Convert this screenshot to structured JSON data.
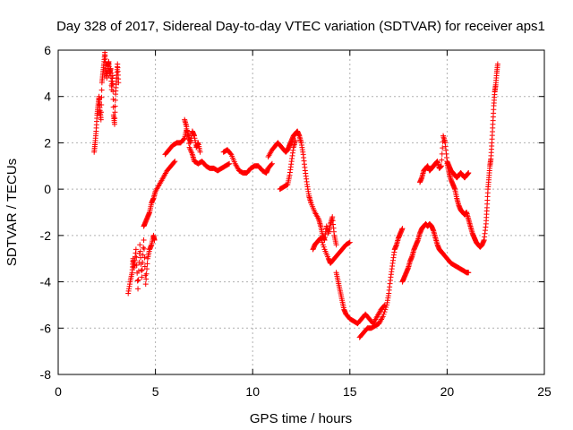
{
  "chart_data": {
    "type": "scatter",
    "title": "Day 328 of 2017, Sidereal Day-to-day VTEC variation (SDTVAR) for receiver aps1",
    "xlabel": "GPS time / hours",
    "ylabel": "SDTVAR / TECUs",
    "xlim": [
      0,
      25
    ],
    "ylim": [
      -8,
      6
    ],
    "xticks": [
      0,
      5,
      10,
      15,
      20,
      25
    ],
    "yticks": [
      -8,
      -6,
      -4,
      -2,
      0,
      2,
      4,
      6
    ],
    "xtick_labels": [
      "0",
      "5",
      "10",
      "15",
      "20",
      "25"
    ],
    "ytick_labels": [
      "-8",
      "-6",
      "-4",
      "-2",
      "0",
      "2",
      "4",
      "6"
    ],
    "grid": true,
    "marker": "+",
    "marker_color": "#ff0000",
    "series": [
      {
        "points": [
          [
            1.85,
            1.6
          ],
          [
            1.9,
            2.0
          ],
          [
            1.95,
            2.5
          ],
          [
            2.0,
            3.2
          ],
          [
            2.05,
            3.6
          ],
          [
            2.1,
            4.0
          ],
          [
            2.15,
            3.4
          ],
          [
            2.2,
            3.0
          ],
          [
            2.25,
            4.6
          ],
          [
            2.3,
            5.0
          ],
          [
            2.35,
            5.4
          ],
          [
            2.4,
            5.9
          ],
          [
            2.45,
            5.2
          ],
          [
            2.5,
            4.8
          ],
          [
            2.55,
            5.3
          ],
          [
            2.6,
            5.5
          ],
          [
            2.65,
            5.0
          ],
          [
            2.7,
            5.2
          ],
          [
            2.75,
            4.3
          ],
          [
            2.8,
            4.9
          ],
          [
            2.85,
            3.2
          ],
          [
            2.9,
            2.8
          ],
          [
            2.95,
            4.1
          ],
          [
            3.0,
            4.8
          ],
          [
            3.05,
            5.4
          ],
          [
            3.1,
            4.6
          ]
        ]
      },
      {
        "points": [
          [
            3.6,
            -4.5
          ],
          [
            3.7,
            -4.0
          ],
          [
            3.8,
            -3.6
          ],
          [
            3.85,
            -3.0
          ],
          [
            3.9,
            -3.4
          ],
          [
            4.0,
            -2.6
          ],
          [
            4.1,
            -4.3
          ],
          [
            4.2,
            -2.4
          ],
          [
            4.3,
            -3.8
          ],
          [
            4.4,
            -2.2
          ],
          [
            4.5,
            -4.1
          ],
          [
            4.6,
            -3.0
          ],
          [
            4.7,
            -2.6
          ],
          [
            4.8,
            -2.4
          ],
          [
            4.9,
            -2.0
          ],
          [
            4.95,
            -2.2
          ]
        ]
      },
      {
        "points": [
          [
            4.4,
            -1.6
          ],
          [
            4.5,
            -1.4
          ],
          [
            4.6,
            -1.2
          ],
          [
            4.7,
            -1.0
          ],
          [
            4.8,
            -0.6
          ],
          [
            4.9,
            -0.4
          ],
          [
            5.0,
            -0.1
          ],
          [
            5.2,
            0.2
          ],
          [
            5.4,
            0.5
          ],
          [
            5.6,
            0.8
          ],
          [
            5.8,
            1.0
          ],
          [
            6.0,
            1.2
          ]
        ]
      },
      {
        "points": [
          [
            5.5,
            1.5
          ],
          [
            5.7,
            1.7
          ],
          [
            5.9,
            1.9
          ],
          [
            6.1,
            2.0
          ],
          [
            6.3,
            2.0
          ],
          [
            6.5,
            2.2
          ],
          [
            6.6,
            2.6
          ],
          [
            6.7,
            2.3
          ],
          [
            6.8,
            2.0
          ],
          [
            6.9,
            2.5
          ],
          [
            7.0,
            2.3
          ],
          [
            7.1,
            1.8
          ],
          [
            7.2,
            2.0
          ],
          [
            7.3,
            1.6
          ]
        ]
      },
      {
        "points": [
          [
            6.5,
            3.0
          ],
          [
            6.6,
            2.7
          ],
          [
            6.75,
            1.8
          ],
          [
            6.9,
            1.5
          ],
          [
            7.0,
            1.2
          ],
          [
            7.2,
            1.1
          ],
          [
            7.4,
            1.2
          ],
          [
            7.6,
            1.0
          ],
          [
            7.8,
            0.9
          ],
          [
            8.0,
            0.9
          ],
          [
            8.2,
            0.8
          ],
          [
            8.4,
            0.9
          ],
          [
            8.6,
            1.0
          ],
          [
            8.8,
            1.1
          ]
        ]
      },
      {
        "points": [
          [
            8.5,
            1.6
          ],
          [
            8.7,
            1.7
          ],
          [
            8.9,
            1.5
          ],
          [
            9.1,
            1.1
          ],
          [
            9.3,
            0.8
          ],
          [
            9.5,
            0.7
          ],
          [
            9.7,
            0.7
          ],
          [
            9.9,
            0.9
          ],
          [
            10.1,
            1.0
          ],
          [
            10.3,
            1.0
          ],
          [
            10.5,
            0.8
          ],
          [
            10.7,
            0.7
          ],
          [
            10.8,
            0.9
          ],
          [
            11.0,
            1.1
          ]
        ]
      },
      {
        "points": [
          [
            10.8,
            1.4
          ],
          [
            11.0,
            1.7
          ],
          [
            11.2,
            1.9
          ],
          [
            11.3,
            2.0
          ],
          [
            11.5,
            1.8
          ],
          [
            11.7,
            1.6
          ],
          [
            11.8,
            1.7
          ],
          [
            11.9,
            1.9
          ],
          [
            12.0,
            2.1
          ],
          [
            12.1,
            2.3
          ],
          [
            12.2,
            2.4
          ],
          [
            12.3,
            2.5
          ],
          [
            12.4,
            2.3
          ],
          [
            12.5,
            2.0
          ],
          [
            12.6,
            1.5
          ],
          [
            12.7,
            0.8
          ],
          [
            12.8,
            0.2
          ],
          [
            12.9,
            -0.3
          ]
        ]
      },
      {
        "points": [
          [
            11.4,
            0.0
          ],
          [
            11.6,
            0.1
          ],
          [
            11.8,
            0.2
          ],
          [
            11.9,
            0.6
          ],
          [
            12.0,
            1.2
          ],
          [
            12.1,
            1.8
          ],
          [
            12.2,
            2.1
          ]
        ]
      },
      {
        "points": [
          [
            12.9,
            -0.3
          ],
          [
            13.0,
            -0.6
          ],
          [
            13.2,
            -1.0
          ],
          [
            13.4,
            -1.3
          ],
          [
            13.5,
            -1.6
          ],
          [
            13.6,
            -2.0
          ],
          [
            13.7,
            -2.2
          ],
          [
            13.8,
            -1.6
          ],
          [
            13.9,
            -1.9
          ],
          [
            14.0,
            -1.5
          ],
          [
            14.1,
            -1.2
          ],
          [
            14.2,
            -2.0
          ],
          [
            14.3,
            -2.4
          ]
        ]
      },
      {
        "points": [
          [
            13.1,
            -2.6
          ],
          [
            13.2,
            -2.4
          ],
          [
            13.3,
            -2.3
          ],
          [
            13.5,
            -2.1
          ],
          [
            13.7,
            -2.6
          ],
          [
            13.9,
            -3.0
          ],
          [
            14.0,
            -3.2
          ],
          [
            14.2,
            -3.0
          ],
          [
            14.4,
            -2.8
          ],
          [
            14.6,
            -2.6
          ],
          [
            14.8,
            -2.4
          ],
          [
            15.0,
            -2.3
          ]
        ]
      },
      {
        "points": [
          [
            14.3,
            -3.6
          ],
          [
            14.4,
            -4.0
          ],
          [
            14.5,
            -4.4
          ],
          [
            14.6,
            -4.8
          ],
          [
            14.7,
            -5.2
          ],
          [
            14.8,
            -5.4
          ],
          [
            15.0,
            -5.6
          ],
          [
            15.2,
            -5.7
          ],
          [
            15.4,
            -5.8
          ],
          [
            15.6,
            -5.6
          ],
          [
            15.8,
            -5.4
          ],
          [
            16.0,
            -5.6
          ],
          [
            16.2,
            -5.8
          ],
          [
            16.4,
            -5.5
          ],
          [
            16.6,
            -5.2
          ],
          [
            16.8,
            -5.0
          ]
        ]
      },
      {
        "points": [
          [
            15.5,
            -6.4
          ],
          [
            15.7,
            -6.2
          ],
          [
            15.9,
            -6.0
          ],
          [
            16.1,
            -6.0
          ],
          [
            16.3,
            -5.9
          ],
          [
            16.5,
            -5.8
          ],
          [
            16.7,
            -5.5
          ],
          [
            16.9,
            -5.0
          ],
          [
            17.0,
            -4.5
          ],
          [
            17.1,
            -3.8
          ],
          [
            17.2,
            -3.2
          ],
          [
            17.3,
            -2.6
          ],
          [
            17.4,
            -2.4
          ],
          [
            17.5,
            -2.1
          ],
          [
            17.6,
            -1.9
          ],
          [
            17.7,
            -1.7
          ]
        ]
      },
      {
        "points": [
          [
            17.7,
            -4.0
          ],
          [
            17.8,
            -3.8
          ],
          [
            17.9,
            -3.6
          ],
          [
            18.0,
            -3.4
          ],
          [
            18.1,
            -3.1
          ],
          [
            18.2,
            -2.9
          ],
          [
            18.3,
            -2.6
          ],
          [
            18.4,
            -2.4
          ],
          [
            18.5,
            -2.2
          ],
          [
            18.6,
            -1.9
          ],
          [
            18.7,
            -1.7
          ],
          [
            18.8,
            -1.6
          ],
          [
            18.9,
            -1.5
          ],
          [
            19.0,
            -1.6
          ],
          [
            19.1,
            -1.5
          ],
          [
            19.2,
            -1.6
          ],
          [
            19.3,
            -1.8
          ],
          [
            19.4,
            -2.1
          ],
          [
            19.5,
            -2.4
          ],
          [
            19.6,
            -2.6
          ],
          [
            19.7,
            -2.7
          ],
          [
            19.8,
            -2.8
          ],
          [
            20.0,
            -3.0
          ],
          [
            20.2,
            -3.2
          ],
          [
            20.4,
            -3.3
          ],
          [
            20.6,
            -3.4
          ],
          [
            20.8,
            -3.5
          ],
          [
            21.0,
            -3.6
          ],
          [
            21.1,
            -3.6
          ]
        ]
      },
      {
        "points": [
          [
            18.6,
            0.3
          ],
          [
            18.7,
            0.5
          ],
          [
            18.8,
            0.8
          ],
          [
            18.9,
            0.9
          ],
          [
            19.0,
            1.0
          ],
          [
            19.1,
            0.8
          ],
          [
            19.2,
            0.9
          ],
          [
            19.3,
            1.0
          ],
          [
            19.4,
            1.1
          ],
          [
            19.5,
            1.2
          ],
          [
            19.6,
            0.9
          ],
          [
            19.7,
            1.0
          ],
          [
            19.8,
            2.3
          ],
          [
            19.9,
            2.0
          ],
          [
            20.0,
            1.2
          ],
          [
            20.1,
            1.0
          ],
          [
            20.2,
            0.8
          ],
          [
            20.3,
            0.7
          ],
          [
            20.4,
            0.6
          ],
          [
            20.5,
            0.5
          ],
          [
            20.6,
            0.6
          ],
          [
            20.7,
            0.7
          ],
          [
            20.8,
            0.6
          ],
          [
            20.9,
            0.5
          ],
          [
            21.0,
            0.6
          ],
          [
            21.1,
            0.7
          ]
        ]
      },
      {
        "points": [
          [
            20.0,
            1.1
          ],
          [
            20.1,
            0.7
          ],
          [
            20.2,
            0.4
          ],
          [
            20.3,
            0.2
          ],
          [
            20.4,
            0.0
          ],
          [
            20.5,
            -0.4
          ],
          [
            20.6,
            -0.7
          ],
          [
            20.7,
            -0.9
          ],
          [
            20.8,
            -1.0
          ],
          [
            20.9,
            -1.1
          ],
          [
            21.0,
            -1.0
          ],
          [
            21.1,
            -1.3
          ],
          [
            21.2,
            -1.6
          ],
          [
            21.3,
            -1.9
          ],
          [
            21.4,
            -2.1
          ],
          [
            21.5,
            -2.3
          ],
          [
            21.6,
            -2.4
          ],
          [
            21.7,
            -2.5
          ],
          [
            21.8,
            -2.4
          ],
          [
            21.9,
            -2.2
          ]
        ]
      },
      {
        "points": [
          [
            21.9,
            -2.2
          ],
          [
            22.0,
            -1.5
          ],
          [
            22.05,
            -0.8
          ],
          [
            22.1,
            0.0
          ],
          [
            22.15,
            0.5
          ],
          [
            22.2,
            1.0
          ],
          [
            22.25,
            1.3
          ],
          [
            22.3,
            2.0
          ],
          [
            22.35,
            2.8
          ],
          [
            22.4,
            3.6
          ],
          [
            22.45,
            4.2
          ],
          [
            22.5,
            4.5
          ],
          [
            22.55,
            5.0
          ],
          [
            22.6,
            5.4
          ]
        ]
      }
    ]
  }
}
